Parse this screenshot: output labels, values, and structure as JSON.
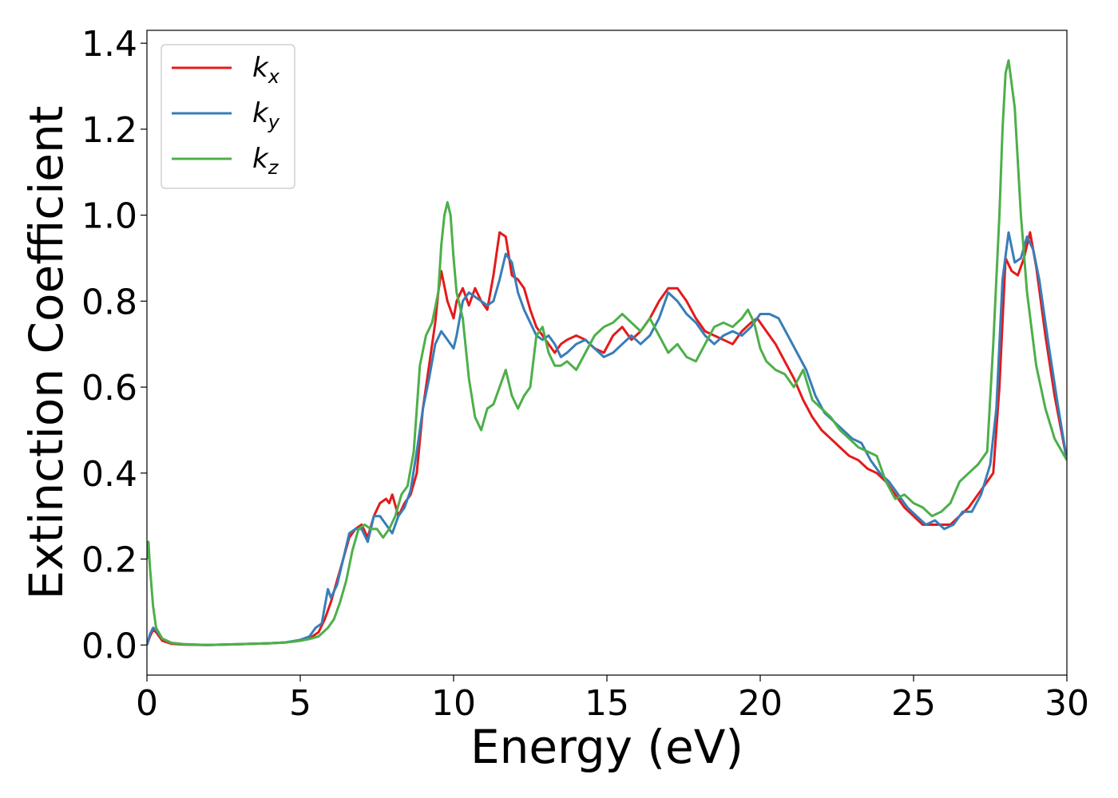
{
  "chart_data": {
    "type": "line",
    "title": "",
    "xlabel": "Energy (eV)",
    "ylabel": "Extinction Coefficient",
    "xlim": [
      0,
      30
    ],
    "ylim": [
      -0.07,
      1.43
    ],
    "x_ticks": [
      0,
      5,
      10,
      15,
      20,
      25,
      30
    ],
    "x_tick_labels": [
      "0",
      "5",
      "10",
      "15",
      "20",
      "25",
      "30"
    ],
    "y_ticks": [
      0.0,
      0.2,
      0.4,
      0.6,
      0.8,
      1.0,
      1.2,
      1.4
    ],
    "y_tick_labels": [
      "0.0",
      "0.2",
      "0.4",
      "0.6",
      "0.8",
      "1.0",
      "1.2",
      "1.4"
    ],
    "grid": false,
    "legend_position": "top-left",
    "series": [
      {
        "name": "k",
        "subscript": "x",
        "color": "#e41a1c",
        "x": [
          0,
          0.1,
          0.2,
          0.3,
          0.5,
          0.8,
          1.2,
          2,
          3,
          4,
          4.5,
          5,
          5.3,
          5.6,
          5.8,
          6.0,
          6.2,
          6.4,
          6.6,
          6.8,
          7.0,
          7.2,
          7.4,
          7.6,
          7.8,
          7.9,
          8.0,
          8.2,
          8.4,
          8.6,
          8.8,
          9.0,
          9.2,
          9.4,
          9.5,
          9.6,
          9.8,
          10.0,
          10.1,
          10.3,
          10.5,
          10.7,
          10.9,
          11.1,
          11.3,
          11.5,
          11.7,
          11.9,
          12.1,
          12.3,
          12.5,
          12.7,
          12.9,
          13.1,
          13.3,
          13.5,
          13.7,
          14.0,
          14.3,
          14.6,
          14.9,
          15.2,
          15.5,
          15.8,
          16.1,
          16.4,
          16.7,
          17.0,
          17.3,
          17.6,
          17.9,
          18.2,
          18.5,
          18.8,
          19.1,
          19.4,
          19.7,
          19.9,
          20.2,
          20.5,
          20.8,
          21.1,
          21.4,
          21.7,
          22.0,
          22.3,
          22.6,
          22.9,
          23.2,
          23.5,
          23.8,
          24.1,
          24.4,
          24.7,
          25.0,
          25.3,
          25.6,
          25.9,
          26.2,
          26.5,
          26.8,
          27.1,
          27.4,
          27.6,
          27.8,
          28.0,
          28.2,
          28.4,
          28.6,
          28.8,
          29.0,
          29.3,
          29.6,
          30.0
        ],
        "y": [
          0.0,
          0.02,
          0.035,
          0.03,
          0.01,
          0.003,
          0.001,
          0.0,
          0.002,
          0.004,
          0.006,
          0.01,
          0.015,
          0.03,
          0.06,
          0.1,
          0.15,
          0.2,
          0.25,
          0.27,
          0.28,
          0.25,
          0.3,
          0.33,
          0.34,
          0.33,
          0.35,
          0.3,
          0.33,
          0.35,
          0.4,
          0.55,
          0.65,
          0.75,
          0.82,
          0.87,
          0.8,
          0.76,
          0.8,
          0.83,
          0.79,
          0.83,
          0.8,
          0.78,
          0.86,
          0.96,
          0.95,
          0.86,
          0.85,
          0.83,
          0.78,
          0.74,
          0.72,
          0.7,
          0.68,
          0.7,
          0.71,
          0.72,
          0.71,
          0.69,
          0.68,
          0.72,
          0.74,
          0.71,
          0.73,
          0.76,
          0.8,
          0.83,
          0.83,
          0.8,
          0.76,
          0.73,
          0.72,
          0.71,
          0.7,
          0.73,
          0.75,
          0.76,
          0.73,
          0.7,
          0.66,
          0.62,
          0.57,
          0.53,
          0.5,
          0.48,
          0.46,
          0.44,
          0.43,
          0.41,
          0.4,
          0.38,
          0.35,
          0.32,
          0.3,
          0.28,
          0.28,
          0.28,
          0.28,
          0.3,
          0.32,
          0.35,
          0.38,
          0.4,
          0.6,
          0.9,
          0.87,
          0.86,
          0.9,
          0.96,
          0.88,
          0.72,
          0.58,
          0.43
        ]
      },
      {
        "name": "k",
        "subscript": "y",
        "color": "#377eb8",
        "x": [
          0,
          0.1,
          0.2,
          0.3,
          0.5,
          0.8,
          1.2,
          2,
          3,
          4,
          4.5,
          5,
          5.3,
          5.5,
          5.7,
          5.9,
          6.0,
          6.2,
          6.4,
          6.6,
          6.8,
          7.0,
          7.2,
          7.4,
          7.6,
          7.8,
          8.0,
          8.2,
          8.4,
          8.6,
          8.8,
          9.0,
          9.2,
          9.4,
          9.6,
          9.8,
          10.0,
          10.1,
          10.3,
          10.5,
          10.7,
          10.9,
          11.1,
          11.3,
          11.5,
          11.7,
          11.9,
          12.1,
          12.3,
          12.5,
          12.7,
          12.9,
          13.1,
          13.3,
          13.5,
          13.7,
          14.0,
          14.3,
          14.6,
          14.9,
          15.2,
          15.5,
          15.8,
          16.1,
          16.4,
          16.7,
          17.0,
          17.3,
          17.6,
          17.9,
          18.2,
          18.5,
          18.8,
          19.1,
          19.4,
          19.7,
          20.0,
          20.3,
          20.6,
          20.9,
          21.2,
          21.5,
          21.8,
          22.1,
          22.4,
          22.7,
          23.0,
          23.3,
          23.6,
          23.9,
          24.2,
          24.5,
          24.8,
          25.1,
          25.4,
          25.7,
          26.0,
          26.3,
          26.6,
          26.9,
          27.2,
          27.5,
          27.7,
          27.9,
          28.1,
          28.3,
          28.5,
          28.7,
          28.9,
          29.1,
          29.4,
          29.7,
          30.0
        ],
        "y": [
          0.0,
          0.025,
          0.04,
          0.035,
          0.015,
          0.005,
          0.002,
          0.0,
          0.002,
          0.004,
          0.006,
          0.012,
          0.02,
          0.04,
          0.05,
          0.13,
          0.11,
          0.14,
          0.2,
          0.26,
          0.27,
          0.27,
          0.24,
          0.3,
          0.3,
          0.28,
          0.26,
          0.3,
          0.32,
          0.36,
          0.45,
          0.55,
          0.62,
          0.7,
          0.73,
          0.71,
          0.69,
          0.72,
          0.8,
          0.82,
          0.81,
          0.8,
          0.79,
          0.8,
          0.85,
          0.91,
          0.89,
          0.82,
          0.78,
          0.75,
          0.72,
          0.71,
          0.72,
          0.7,
          0.67,
          0.68,
          0.7,
          0.71,
          0.69,
          0.67,
          0.68,
          0.7,
          0.72,
          0.7,
          0.72,
          0.76,
          0.82,
          0.8,
          0.77,
          0.75,
          0.72,
          0.7,
          0.72,
          0.73,
          0.72,
          0.74,
          0.77,
          0.77,
          0.76,
          0.72,
          0.68,
          0.64,
          0.58,
          0.54,
          0.52,
          0.5,
          0.48,
          0.47,
          0.43,
          0.4,
          0.38,
          0.35,
          0.32,
          0.3,
          0.28,
          0.29,
          0.27,
          0.28,
          0.31,
          0.31,
          0.35,
          0.42,
          0.55,
          0.85,
          0.96,
          0.89,
          0.9,
          0.95,
          0.92,
          0.85,
          0.7,
          0.56,
          0.43
        ]
      },
      {
        "name": "k",
        "subscript": "z",
        "color": "#4daf4a",
        "x": [
          0,
          0.05,
          0.1,
          0.2,
          0.3,
          0.5,
          0.8,
          1.2,
          2,
          3,
          4,
          4.5,
          5,
          5.3,
          5.6,
          5.9,
          6.1,
          6.3,
          6.5,
          6.7,
          6.9,
          7.1,
          7.3,
          7.5,
          7.7,
          7.9,
          8.1,
          8.3,
          8.5,
          8.7,
          8.9,
          9.1,
          9.3,
          9.5,
          9.6,
          9.7,
          9.8,
          9.9,
          10.0,
          10.1,
          10.3,
          10.5,
          10.7,
          10.9,
          11.1,
          11.3,
          11.5,
          11.7,
          11.9,
          12.1,
          12.3,
          12.5,
          12.7,
          12.9,
          13.1,
          13.3,
          13.5,
          13.7,
          14.0,
          14.3,
          14.6,
          14.9,
          15.2,
          15.5,
          15.8,
          16.1,
          16.4,
          16.7,
          17.0,
          17.3,
          17.6,
          17.9,
          18.2,
          18.5,
          18.8,
          19.1,
          19.4,
          19.6,
          19.8,
          20.0,
          20.2,
          20.5,
          20.8,
          21.1,
          21.4,
          21.7,
          22.0,
          22.3,
          22.6,
          22.9,
          23.2,
          23.5,
          23.8,
          24.1,
          24.4,
          24.7,
          25.0,
          25.3,
          25.6,
          25.9,
          26.2,
          26.5,
          26.8,
          27.1,
          27.4,
          27.6,
          27.8,
          27.9,
          28.0,
          28.1,
          28.3,
          28.5,
          28.7,
          29.0,
          29.3,
          29.6,
          30.0
        ],
        "y": [
          0.2,
          0.24,
          0.18,
          0.09,
          0.04,
          0.015,
          0.005,
          0.002,
          0.0,
          0.002,
          0.004,
          0.006,
          0.01,
          0.014,
          0.02,
          0.04,
          0.06,
          0.1,
          0.15,
          0.22,
          0.27,
          0.28,
          0.27,
          0.27,
          0.25,
          0.27,
          0.3,
          0.35,
          0.37,
          0.45,
          0.65,
          0.72,
          0.75,
          0.82,
          0.93,
          1.0,
          1.03,
          1.0,
          0.9,
          0.82,
          0.76,
          0.62,
          0.53,
          0.5,
          0.55,
          0.56,
          0.6,
          0.64,
          0.58,
          0.55,
          0.58,
          0.6,
          0.72,
          0.74,
          0.68,
          0.65,
          0.65,
          0.66,
          0.64,
          0.68,
          0.72,
          0.74,
          0.75,
          0.77,
          0.75,
          0.73,
          0.76,
          0.72,
          0.68,
          0.7,
          0.67,
          0.66,
          0.7,
          0.74,
          0.75,
          0.74,
          0.76,
          0.78,
          0.75,
          0.69,
          0.66,
          0.64,
          0.63,
          0.6,
          0.64,
          0.57,
          0.55,
          0.53,
          0.5,
          0.48,
          0.46,
          0.45,
          0.44,
          0.38,
          0.34,
          0.35,
          0.33,
          0.32,
          0.3,
          0.31,
          0.33,
          0.38,
          0.4,
          0.42,
          0.45,
          0.7,
          1.0,
          1.2,
          1.33,
          1.36,
          1.25,
          1.0,
          0.82,
          0.65,
          0.55,
          0.48,
          0.43
        ]
      }
    ]
  }
}
